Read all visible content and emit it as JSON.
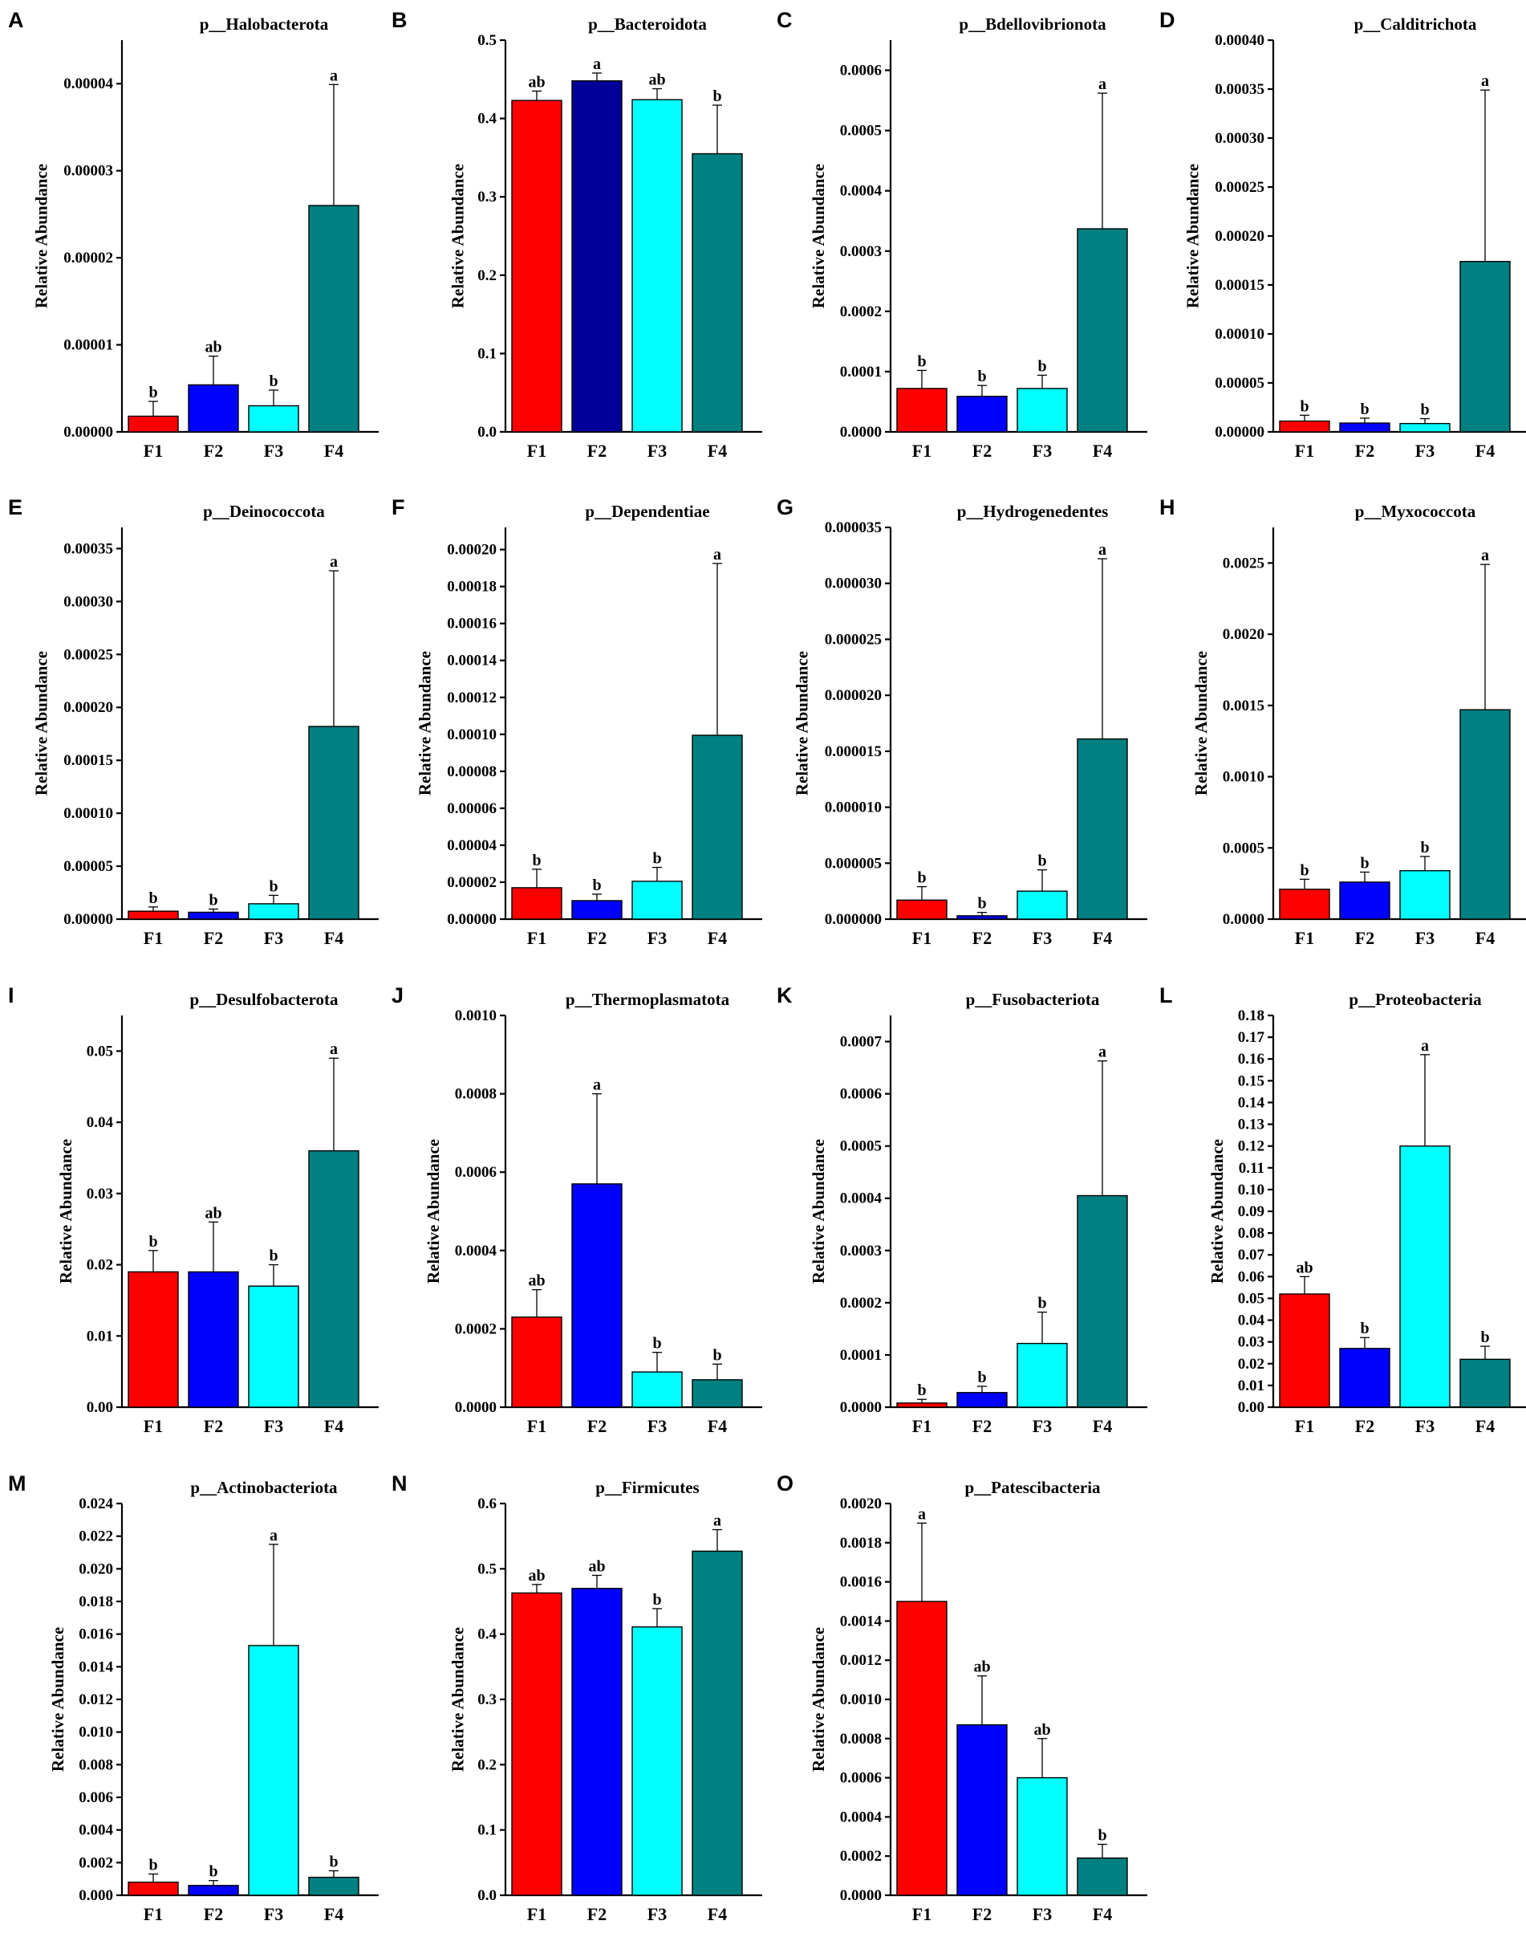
{
  "y_axis_label": "Relative Abundance",
  "colors": {
    "F1": "#ff0000",
    "F2": "#0000ff",
    "F3": "#00ffff",
    "F4": "#008080",
    "F2_alt": "#000099"
  },
  "chart_data": [
    {
      "panel": "A",
      "type": "bar",
      "title": "p__Halobacterota",
      "categories": [
        "F1",
        "F2",
        "F3",
        "F4"
      ],
      "values": [
        1.8e-06,
        5.4e-06,
        3e-06,
        2.6e-05
      ],
      "errors": [
        1.7e-06,
        3.3e-06,
        1.8e-06,
        1.39e-05
      ],
      "letters": [
        "b",
        "ab",
        "b",
        "a"
      ],
      "ylim": [
        0,
        4.5e-05
      ],
      "ticks": [
        0,
        1e-05,
        2e-05,
        3e-05,
        4e-05
      ],
      "tick_labels": [
        "0.00000",
        "0.00001",
        "0.00002",
        "0.00003",
        "0.00004"
      ]
    },
    {
      "panel": "B",
      "type": "bar",
      "title": "p__Bacteroidota",
      "categories": [
        "F1",
        "F2",
        "F3",
        "F4"
      ],
      "values": [
        0.423,
        0.448,
        0.424,
        0.355
      ],
      "errors": [
        0.012,
        0.01,
        0.014,
        0.062
      ],
      "letters": [
        "ab",
        "a",
        "ab",
        "b"
      ],
      "ylim": [
        0,
        0.5
      ],
      "ticks": [
        0,
        0.1,
        0.2,
        0.3,
        0.4,
        0.5
      ],
      "tick_labels": [
        "0.0",
        "0.1",
        "0.2",
        "0.3",
        "0.4",
        "0.5"
      ]
    },
    {
      "panel": "C",
      "type": "bar",
      "title": "p__Bdellovibrionota",
      "categories": [
        "F1",
        "F2",
        "F3",
        "F4"
      ],
      "values": [
        7.2e-05,
        5.9e-05,
        7.2e-05,
        0.000337
      ],
      "errors": [
        3e-05,
        1.8e-05,
        2.2e-05,
        0.000225
      ],
      "letters": [
        "b",
        "b",
        "b",
        "a"
      ],
      "ylim": [
        0,
        0.00065
      ],
      "ticks": [
        0,
        0.0001,
        0.0002,
        0.0003,
        0.0004,
        0.0005,
        0.0006
      ],
      "tick_labels": [
        "0.0000",
        "0.0001",
        "0.0002",
        "0.0003",
        "0.0004",
        "0.0005",
        "0.0006"
      ]
    },
    {
      "panel": "D",
      "type": "bar",
      "title": "p__Calditrichota",
      "categories": [
        "F1",
        "F2",
        "F3",
        "F4"
      ],
      "values": [
        1.1e-05,
        9e-06,
        8.5e-06,
        0.000174
      ],
      "errors": [
        6e-06,
        5e-06,
        5e-06,
        0.000175
      ],
      "letters": [
        "b",
        "b",
        "b",
        "a"
      ],
      "ylim": [
        0,
        0.0004
      ],
      "ticks": [
        0,
        5e-05,
        0.0001,
        0.00015,
        0.0002,
        0.00025,
        0.0003,
        0.00035,
        0.0004
      ],
      "tick_labels": [
        "0.00000",
        "0.00005",
        "0.00010",
        "0.00015",
        "0.00020",
        "0.00025",
        "0.00030",
        "0.00035",
        "0.00040"
      ]
    },
    {
      "panel": "E",
      "type": "bar",
      "title": "p__Deinococcota",
      "categories": [
        "F1",
        "F2",
        "F3",
        "F4"
      ],
      "values": [
        7.5e-06,
        6.5e-06,
        1.45e-05,
        0.000182
      ],
      "errors": [
        4e-06,
        3e-06,
        8e-06,
        0.000147
      ],
      "letters": [
        "b",
        "b",
        "b",
        "a"
      ],
      "ylim": [
        0,
        0.00037
      ],
      "ticks": [
        0,
        5e-05,
        0.0001,
        0.00015,
        0.0002,
        0.00025,
        0.0003,
        0.00035
      ],
      "tick_labels": [
        "0.00000",
        "0.00005",
        "0.00010",
        "0.00015",
        "0.00020",
        "0.00025",
        "0.00030",
        "0.00035"
      ]
    },
    {
      "panel": "F",
      "type": "bar",
      "title": "p__Dependentiae",
      "categories": [
        "F1",
        "F2",
        "F3",
        "F4"
      ],
      "values": [
        1.7e-05,
        1e-05,
        2.05e-05,
        9.95e-05
      ],
      "errors": [
        1e-05,
        3.5e-06,
        7.5e-06,
        9.3e-05
      ],
      "letters": [
        "b",
        "b",
        "b",
        "a"
      ],
      "ylim": [
        0,
        0.000212
      ],
      "ticks": [
        0,
        2e-05,
        4e-05,
        6e-05,
        8e-05,
        0.0001,
        0.00012,
        0.00014,
        0.00016,
        0.00018,
        0.0002
      ],
      "tick_labels": [
        "0.00000",
        "0.00002",
        "0.00004",
        "0.00006",
        "0.00008",
        "0.00010",
        "0.00012",
        "0.00014",
        "0.00016",
        "0.00018",
        "0.00020"
      ]
    },
    {
      "panel": "G",
      "type": "bar",
      "title": "p__Hydrogenedentes",
      "categories": [
        "F1",
        "F2",
        "F3",
        "F4"
      ],
      "values": [
        1.7e-06,
        3e-07,
        2.5e-06,
        1.61e-05
      ],
      "errors": [
        1.2e-06,
        3e-07,
        1.9e-06,
        1.61e-05
      ],
      "letters": [
        "b",
        "b",
        "b",
        "a"
      ],
      "ylim": [
        0,
        3.5e-05
      ],
      "ticks": [
        0,
        5e-06,
        1e-05,
        1.5e-05,
        2e-05,
        2.5e-05,
        3e-05,
        3.5e-05
      ],
      "tick_labels": [
        "0.000000",
        "0.000005",
        "0.000010",
        "0.000015",
        "0.000020",
        "0.000025",
        "0.000030",
        "0.000035"
      ]
    },
    {
      "panel": "H",
      "type": "bar",
      "title": "p__Myxococcota",
      "categories": [
        "F1",
        "F2",
        "F3",
        "F4"
      ],
      "values": [
        0.00021,
        0.00026,
        0.00034,
        0.00147
      ],
      "errors": [
        7e-05,
        7e-05,
        0.0001,
        0.00102
      ],
      "letters": [
        "b",
        "b",
        "b",
        "a"
      ],
      "ylim": [
        0,
        0.00275
      ],
      "ticks": [
        0,
        0.0005,
        0.001,
        0.0015,
        0.002,
        0.0025
      ],
      "tick_labels": [
        "0.0000",
        "0.0005",
        "0.0010",
        "0.0015",
        "0.0020",
        "0.0025"
      ]
    },
    {
      "panel": "I",
      "type": "bar",
      "title": "p__Desulfobacterota",
      "categories": [
        "F1",
        "F2",
        "F3",
        "F4"
      ],
      "values": [
        0.019,
        0.019,
        0.017,
        0.036
      ],
      "errors": [
        0.003,
        0.007,
        0.003,
        0.013
      ],
      "letters": [
        "b",
        "ab",
        "b",
        "a"
      ],
      "ylim": [
        0,
        0.055
      ],
      "ticks": [
        0,
        0.01,
        0.02,
        0.03,
        0.04,
        0.05
      ],
      "tick_labels": [
        "0.00",
        "0.01",
        "0.02",
        "0.03",
        "0.04",
        "0.05"
      ]
    },
    {
      "panel": "J",
      "type": "bar",
      "title": "p__Thermoplasmatota",
      "categories": [
        "F1",
        "F2",
        "F3",
        "F4"
      ],
      "values": [
        0.00023,
        0.00057,
        9e-05,
        7e-05
      ],
      "errors": [
        7e-05,
        0.00023,
        5e-05,
        4e-05
      ],
      "letters": [
        "ab",
        "a",
        "b",
        "b"
      ],
      "ylim": [
        0,
        0.001
      ],
      "ticks": [
        0,
        0.0002,
        0.0004,
        0.0006,
        0.0008,
        0.001
      ],
      "tick_labels": [
        "0.0000",
        "0.0002",
        "0.0004",
        "0.0006",
        "0.0008",
        "0.0010"
      ]
    },
    {
      "panel": "K",
      "type": "bar",
      "title": "p__Fusobacteriota",
      "categories": [
        "F1",
        "F2",
        "F3",
        "F4"
      ],
      "values": [
        8e-06,
        2.8e-05,
        0.000122,
        0.000405
      ],
      "errors": [
        7e-06,
        1.2e-05,
        6e-05,
        0.000258
      ],
      "letters": [
        "b",
        "b",
        "b",
        "a"
      ],
      "ylim": [
        0,
        0.00075
      ],
      "ticks": [
        0,
        0.0001,
        0.0002,
        0.0003,
        0.0004,
        0.0005,
        0.0006,
        0.0007
      ],
      "tick_labels": [
        "0.0000",
        "0.0001",
        "0.0002",
        "0.0003",
        "0.0004",
        "0.0005",
        "0.0006",
        "0.0007"
      ]
    },
    {
      "panel": "L",
      "type": "bar",
      "title": "p__Proteobacteria",
      "categories": [
        "F1",
        "F2",
        "F3",
        "F4"
      ],
      "values": [
        0.052,
        0.027,
        0.12,
        0.022
      ],
      "errors": [
        0.008,
        0.005,
        0.042,
        0.006
      ],
      "letters": [
        "ab",
        "b",
        "a",
        "b"
      ],
      "ylim": [
        0,
        0.18
      ],
      "ticks": [
        0,
        0.01,
        0.02,
        0.03,
        0.04,
        0.05,
        0.06,
        0.07,
        0.08,
        0.09,
        0.1,
        0.11,
        0.12,
        0.13,
        0.14,
        0.15,
        0.16,
        0.17,
        0.18
      ],
      "tick_labels": [
        "0.00",
        "0.01",
        "0.02",
        "0.03",
        "0.04",
        "0.05",
        "0.06",
        "0.07",
        "0.08",
        "0.09",
        "0.10",
        "0.11",
        "0.12",
        "0.13",
        "0.14",
        "0.15",
        "0.16",
        "0.17",
        "0.18"
      ]
    },
    {
      "panel": "M",
      "type": "bar",
      "title": "p__Actinobacteriota",
      "categories": [
        "F1",
        "F2",
        "F3",
        "F4"
      ],
      "values": [
        0.0008,
        0.0006,
        0.0153,
        0.0011
      ],
      "errors": [
        0.0005,
        0.0003,
        0.0062,
        0.0004
      ],
      "letters": [
        "b",
        "b",
        "a",
        "b"
      ],
      "ylim": [
        0,
        0.024
      ],
      "ticks": [
        0,
        0.002,
        0.004,
        0.006,
        0.008,
        0.01,
        0.012,
        0.014,
        0.016,
        0.018,
        0.02,
        0.022,
        0.024
      ],
      "tick_labels": [
        "0.000",
        "0.002",
        "0.004",
        "0.006",
        "0.008",
        "0.010",
        "0.012",
        "0.014",
        "0.016",
        "0.018",
        "0.020",
        "0.022",
        "0.024"
      ]
    },
    {
      "panel": "N",
      "type": "bar",
      "title": "p__Firmicutes",
      "categories": [
        "F1",
        "F2",
        "F3",
        "F4"
      ],
      "values": [
        0.463,
        0.47,
        0.411,
        0.527
      ],
      "errors": [
        0.013,
        0.02,
        0.028,
        0.033
      ],
      "letters": [
        "ab",
        "ab",
        "b",
        "a"
      ],
      "ylim": [
        0,
        0.6
      ],
      "ticks": [
        0,
        0.1,
        0.2,
        0.3,
        0.4,
        0.5,
        0.6
      ],
      "tick_labels": [
        "0.0",
        "0.1",
        "0.2",
        "0.3",
        "0.4",
        "0.5",
        "0.6"
      ]
    },
    {
      "panel": "O",
      "type": "bar",
      "title": "p__Patescibacteria",
      "categories": [
        "F1",
        "F2",
        "F3",
        "F4"
      ],
      "values": [
        0.0015,
        0.00087,
        0.0006,
        0.00019
      ],
      "errors": [
        0.0004,
        0.00025,
        0.0002,
        7e-05
      ],
      "letters": [
        "a",
        "ab",
        "ab",
        "b"
      ],
      "ylim": [
        0,
        0.002
      ],
      "ticks": [
        0,
        0.0002,
        0.0004,
        0.0006,
        0.0008,
        0.001,
        0.0012,
        0.0014,
        0.0016,
        0.0018,
        0.002
      ],
      "tick_labels": [
        "0.0000",
        "0.0002",
        "0.0004",
        "0.0006",
        "0.0008",
        "0.0010",
        "0.0012",
        "0.0014",
        "0.0016",
        "0.0018",
        "0.0020"
      ]
    }
  ]
}
